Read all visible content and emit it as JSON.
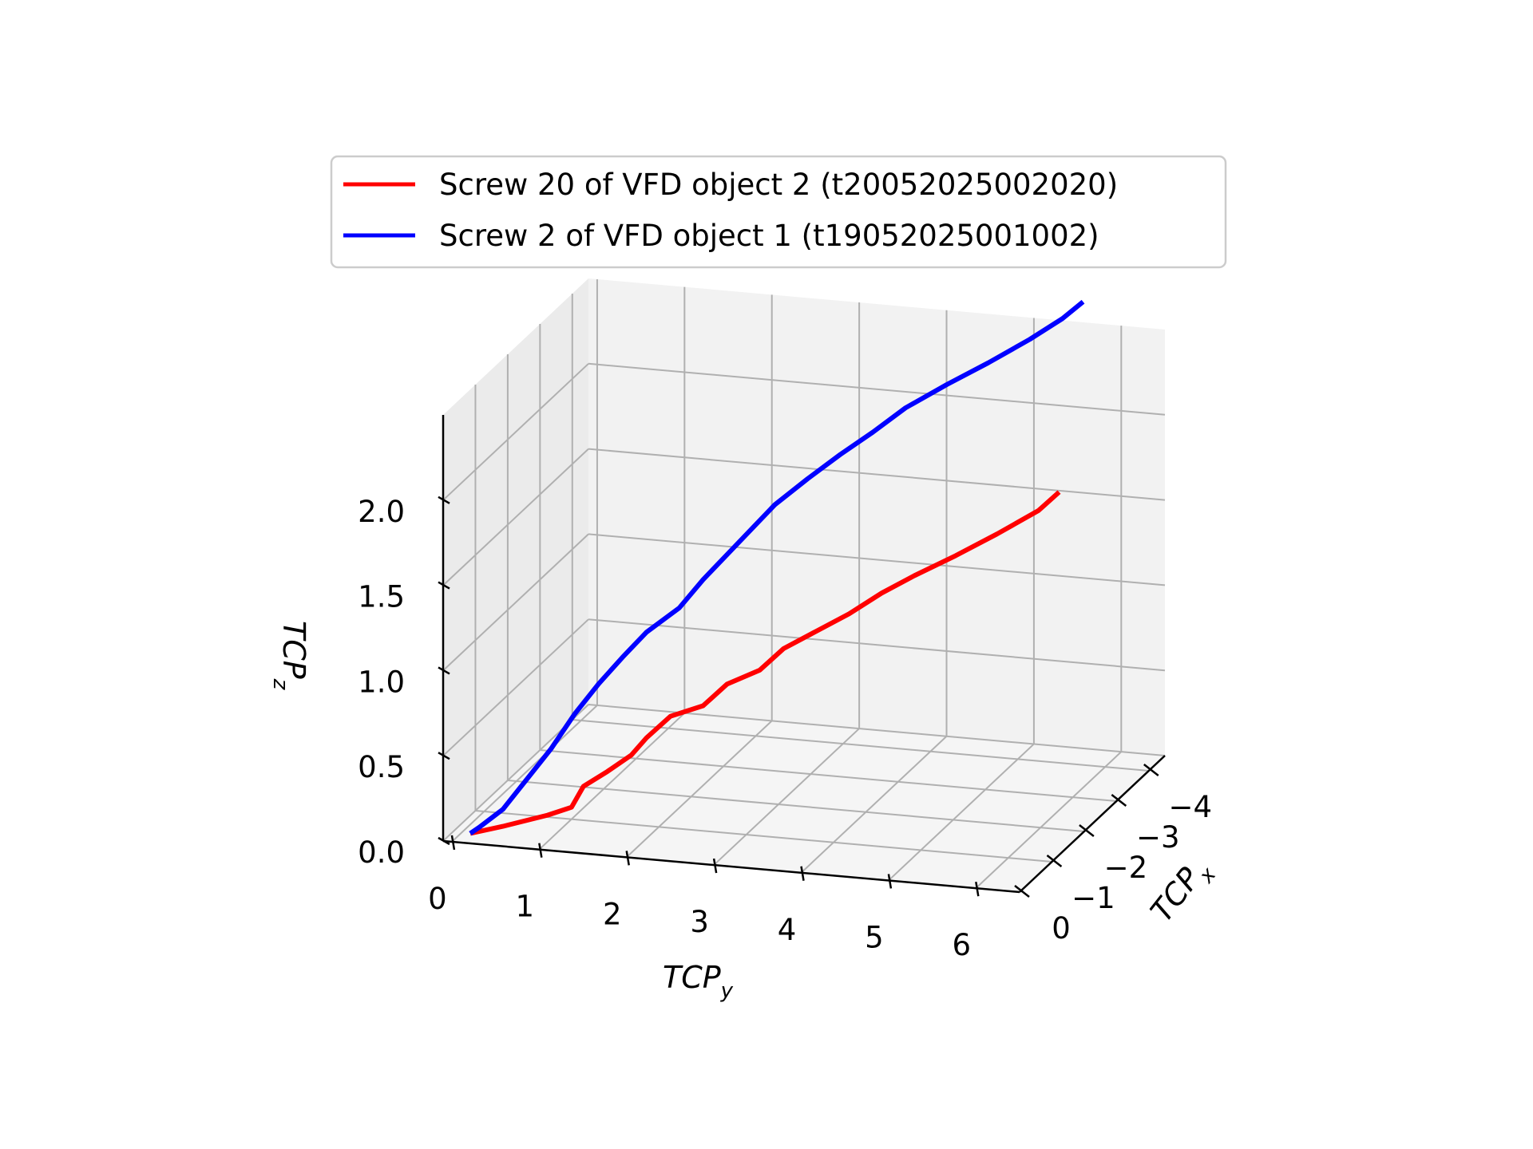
{
  "chart_data": {
    "type": "line",
    "projection": "3d",
    "axes": {
      "x": {
        "label": "TCP",
        "label_sub": "x",
        "ticks": [
          "0",
          "−1",
          "−2",
          "−3",
          "−4"
        ],
        "range": [
          0,
          -4.5
        ]
      },
      "y": {
        "label": "TCP",
        "label_sub": "y",
        "ticks": [
          "0",
          "1",
          "2",
          "3",
          "4",
          "5",
          "6"
        ],
        "range": [
          -0.1,
          6.5
        ]
      },
      "z": {
        "label": "TCP",
        "label_sub": "z",
        "ticks": [
          "0.0",
          "0.5",
          "1.0",
          "1.5",
          "2.0"
        ],
        "range": [
          0,
          2.5
        ]
      }
    },
    "grid": true,
    "legend_position": "top-center",
    "series": [
      {
        "name": "Screw 20 of VFD object 2 (t20052025002020)",
        "color": "#ff0000",
        "points": [
          {
            "x": -0.3,
            "y": 0.1,
            "z": 0.0
          },
          {
            "x": -0.5,
            "y": 0.4,
            "z": 0.02
          },
          {
            "x": -0.8,
            "y": 0.8,
            "z": 0.05
          },
          {
            "x": -1.0,
            "y": 1.0,
            "z": 0.07
          },
          {
            "x": -1.1,
            "y": 1.1,
            "z": 0.18
          },
          {
            "x": -1.3,
            "y": 1.3,
            "z": 0.24
          },
          {
            "x": -1.5,
            "y": 1.5,
            "z": 0.31
          },
          {
            "x": -1.7,
            "y": 1.6,
            "z": 0.38
          },
          {
            "x": -1.9,
            "y": 1.8,
            "z": 0.48
          },
          {
            "x": -2.1,
            "y": 2.1,
            "z": 0.52
          },
          {
            "x": -2.3,
            "y": 2.3,
            "z": 0.62
          },
          {
            "x": -2.5,
            "y": 2.6,
            "z": 0.68
          },
          {
            "x": -2.7,
            "y": 2.8,
            "z": 0.78
          },
          {
            "x": -2.9,
            "y": 3.1,
            "z": 0.86
          },
          {
            "x": -3.1,
            "y": 3.4,
            "z": 0.94
          },
          {
            "x": -3.3,
            "y": 3.7,
            "z": 1.04
          },
          {
            "x": -3.5,
            "y": 4.0,
            "z": 1.12
          },
          {
            "x": -3.7,
            "y": 4.4,
            "z": 1.22
          },
          {
            "x": -3.9,
            "y": 4.8,
            "z": 1.33
          },
          {
            "x": -4.1,
            "y": 5.2,
            "z": 1.45
          },
          {
            "x": -4.2,
            "y": 5.4,
            "z": 1.55
          }
        ]
      },
      {
        "name": "Screw 2 of VFD object 1 (t19052025001002)",
        "color": "#0000ff",
        "points": [
          {
            "x": -0.3,
            "y": 0.1,
            "z": 0.0
          },
          {
            "x": -0.3,
            "y": 0.2,
            "z": 0.04
          },
          {
            "x": -0.5,
            "y": 0.4,
            "z": 0.12
          },
          {
            "x": -0.7,
            "y": 0.6,
            "z": 0.27
          },
          {
            "x": -0.9,
            "y": 0.8,
            "z": 0.42
          },
          {
            "x": -1.1,
            "y": 1.0,
            "z": 0.6
          },
          {
            "x": -1.3,
            "y": 1.2,
            "z": 0.75
          },
          {
            "x": -1.5,
            "y": 1.4,
            "z": 0.88
          },
          {
            "x": -1.7,
            "y": 1.6,
            "z": 1.0
          },
          {
            "x": -1.9,
            "y": 1.9,
            "z": 1.12
          },
          {
            "x": -2.1,
            "y": 2.1,
            "z": 1.26
          },
          {
            "x": -2.3,
            "y": 2.3,
            "z": 1.38
          },
          {
            "x": -2.5,
            "y": 2.5,
            "z": 1.5
          },
          {
            "x": -2.7,
            "y": 2.7,
            "z": 1.62
          },
          {
            "x": -2.9,
            "y": 3.0,
            "z": 1.75
          },
          {
            "x": -3.1,
            "y": 3.3,
            "z": 1.87
          },
          {
            "x": -3.3,
            "y": 3.6,
            "z": 1.98
          },
          {
            "x": -3.5,
            "y": 3.9,
            "z": 2.1
          },
          {
            "x": -3.7,
            "y": 4.3,
            "z": 2.22
          },
          {
            "x": -3.9,
            "y": 4.7,
            "z": 2.33
          },
          {
            "x": -4.1,
            "y": 5.1,
            "z": 2.45
          },
          {
            "x": -4.3,
            "y": 5.4,
            "z": 2.55
          },
          {
            "x": -4.4,
            "y": 5.6,
            "z": 2.64
          }
        ]
      }
    ]
  }
}
